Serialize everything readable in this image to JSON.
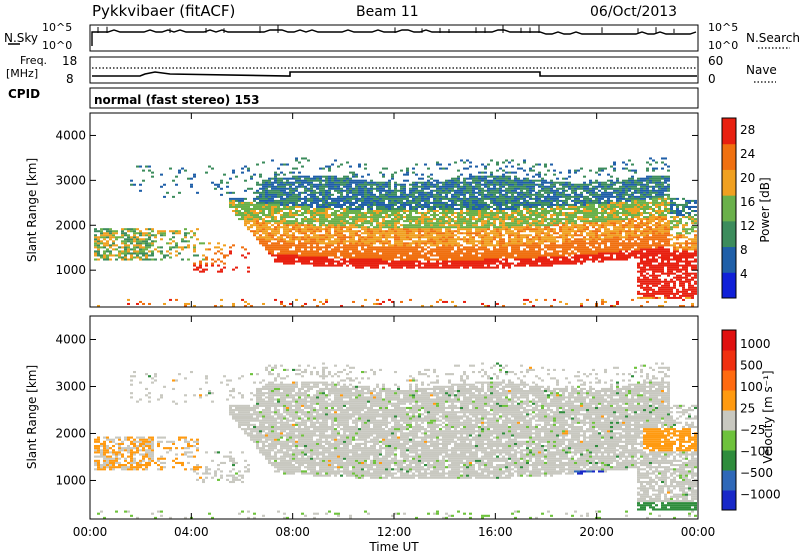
{
  "header": {
    "title": "Pykkvibaer (fitACF)",
    "beam": "Beam 11",
    "date": "06/Oct/2013",
    "mode": "normal (fast stereo) 153"
  },
  "aux_panels": {
    "nsky_label": "N.Sky",
    "nsearch_label": "N.Search",
    "noise_left_ticks": [
      "10^5",
      "10^0"
    ],
    "noise_right_ticks": [
      "10^5",
      "10^0"
    ],
    "freq_label_1": "Freq.",
    "freq_label_2": "[MHz]",
    "freq_ticks": [
      "18",
      "8"
    ],
    "nave_label": "Nave",
    "nave_ticks": [
      "60",
      "0"
    ],
    "cpid_label": "CPID"
  },
  "chart_data": [
    {
      "type": "heatmap",
      "name": "power",
      "ylabel": "Slant Range [km]",
      "xlabel": "Time UT",
      "ylim": [
        180,
        4500
      ],
      "yticks": [
        "1000",
        "2000",
        "3000",
        "4000"
      ],
      "xticks": [
        "00:00",
        "04:00",
        "08:00",
        "12:00",
        "16:00",
        "20:00",
        "00:00"
      ],
      "colorbar_label": "Power [dB]",
      "colorbar_ticks": [
        "4",
        "8",
        "12",
        "16",
        "20",
        "24",
        "28"
      ],
      "colorbar_range": [
        0,
        30
      ],
      "colors": [
        "#1020d8",
        "#1f5fa8",
        "#3c8c5c",
        "#6ab04a",
        "#f0a020",
        "#f07010",
        "#e82010"
      ]
    },
    {
      "type": "heatmap",
      "name": "velocity",
      "ylabel": "Slant Range [km]",
      "xlabel": "Time UT",
      "ylim": [
        180,
        4500
      ],
      "yticks": [
        "1000",
        "2000",
        "3000",
        "4000"
      ],
      "xticks": [
        "00:00",
        "04:00",
        "08:00",
        "12:00",
        "16:00",
        "20:00",
        "00:00"
      ],
      "colorbar_label": "Velocity [m s⁻¹]",
      "colorbar_ticks": [
        "1000",
        "500",
        "100",
        "25",
        "−25",
        "−100",
        "−500",
        "−1000"
      ],
      "colors": [
        "#1828c8",
        "#2f68b8",
        "#2e8c3c",
        "#6ec23c",
        "#c8c8c0",
        "#ff9a10",
        "#ff6a10",
        "#f03010",
        "#e01010"
      ]
    }
  ],
  "xaxis_label": "Time UT"
}
